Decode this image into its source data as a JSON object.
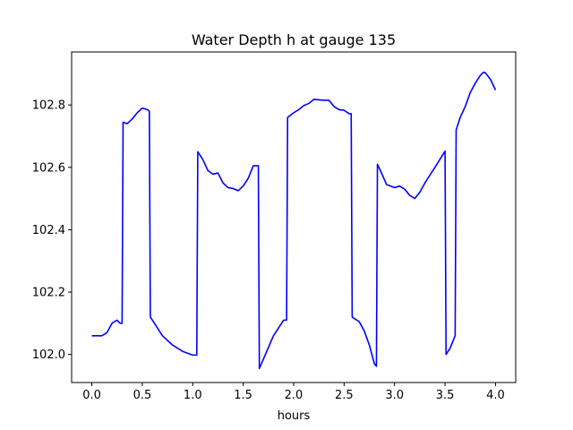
{
  "chart_data": {
    "type": "line",
    "title": "Water Depth h at gauge 135",
    "xlabel": "hours",
    "ylabel": "",
    "xlim": [
      -0.2,
      4.2
    ],
    "ylim": [
      101.91,
      102.97
    ],
    "xticks": [
      0.0,
      0.5,
      1.0,
      1.5,
      2.0,
      2.5,
      3.0,
      3.5,
      4.0
    ],
    "xtick_labels": [
      "0.0",
      "0.5",
      "1.0",
      "1.5",
      "2.0",
      "2.5",
      "3.0",
      "3.5",
      "4.0"
    ],
    "yticks": [
      102.0,
      102.2,
      102.4,
      102.6,
      102.8
    ],
    "ytick_labels": [
      "102.0",
      "102.2",
      "102.4",
      "102.6",
      "102.8"
    ],
    "grid": false,
    "series": [
      {
        "color": "#0000ff",
        "x": [
          0.0,
          0.1,
          0.15,
          0.2,
          0.25,
          0.28,
          0.3,
          0.31,
          0.35,
          0.4,
          0.45,
          0.5,
          0.55,
          0.57,
          0.58,
          0.62,
          0.7,
          0.8,
          0.9,
          1.0,
          1.04,
          1.05,
          1.1,
          1.15,
          1.2,
          1.25,
          1.3,
          1.35,
          1.4,
          1.45,
          1.5,
          1.55,
          1.6,
          1.65,
          1.66,
          1.72,
          1.8,
          1.9,
          1.93,
          1.94,
          2.0,
          2.05,
          2.1,
          2.15,
          2.2,
          2.3,
          2.35,
          2.4,
          2.45,
          2.5,
          2.55,
          2.57,
          2.58,
          2.65,
          2.7,
          2.75,
          2.8,
          2.82,
          2.83,
          2.88,
          2.92,
          3.0,
          3.05,
          3.1,
          3.15,
          3.2,
          3.25,
          3.3,
          3.4,
          3.5,
          3.51,
          3.55,
          3.6,
          3.61,
          3.65,
          3.7,
          3.75,
          3.8,
          3.85,
          3.88,
          3.9,
          3.95,
          4.0
        ],
        "y": [
          102.06,
          102.06,
          102.07,
          102.1,
          102.11,
          102.1,
          102.1,
          102.745,
          102.74,
          102.755,
          102.775,
          102.79,
          102.785,
          102.78,
          102.12,
          102.1,
          102.06,
          102.03,
          102.01,
          101.998,
          101.998,
          102.65,
          102.625,
          102.59,
          102.578,
          102.582,
          102.55,
          102.535,
          102.532,
          102.525,
          102.54,
          102.565,
          102.605,
          102.605,
          101.955,
          102.0,
          102.06,
          102.11,
          102.11,
          102.76,
          102.775,
          102.785,
          102.798,
          102.805,
          102.818,
          102.815,
          102.815,
          102.795,
          102.785,
          102.783,
          102.772,
          102.772,
          102.12,
          102.105,
          102.075,
          102.03,
          101.97,
          101.962,
          102.61,
          102.575,
          102.545,
          102.535,
          102.54,
          102.53,
          102.51,
          102.5,
          102.52,
          102.55,
          102.6,
          102.652,
          102.0,
          102.02,
          102.06,
          102.72,
          102.76,
          102.795,
          102.84,
          102.87,
          102.895,
          102.905,
          102.903,
          102.882,
          102.848
        ]
      }
    ]
  }
}
